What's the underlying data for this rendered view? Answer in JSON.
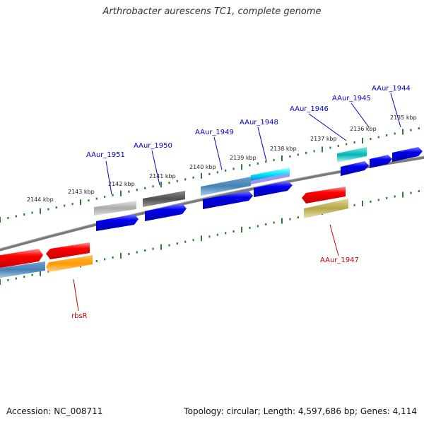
{
  "title": "Arthrobacter aurescens TC1, complete genome",
  "accession": "Accession: NC_008711",
  "topology": "Topology: circular; Length: 4,597,686 bp; Genes: 4,114",
  "colors": {
    "label_top": "#0000cc",
    "label_bottom": "#cc0000",
    "backbone": "#808080",
    "tick": "#2e7d32"
  },
  "kbp_labels": [
    {
      "text": "2144 kbp"
    },
    {
      "text": "2143 kbp"
    },
    {
      "text": "2142 kbp"
    },
    {
      "text": "2141 kbp"
    },
    {
      "text": "2140 kbp"
    },
    {
      "text": "2139 kbp"
    },
    {
      "text": "2138 kbp"
    },
    {
      "text": "2137 kbp"
    },
    {
      "text": "2136 kbp"
    },
    {
      "text": "2135 kbp"
    }
  ],
  "gene_labels": [
    {
      "text": "AAur_1951",
      "color": "#0000cc"
    },
    {
      "text": "AAur_1950",
      "color": "#0000cc"
    },
    {
      "text": "AAur_1949",
      "color": "#0000cc"
    },
    {
      "text": "AAur_1948",
      "color": "#0000cc"
    },
    {
      "text": "AAur_1946",
      "color": "#0000cc"
    },
    {
      "text": "AAur_1945",
      "color": "#0000cc"
    },
    {
      "text": "AAur_1944",
      "color": "#0000cc"
    },
    {
      "text": "AAur_1947",
      "color": "#cc0000"
    },
    {
      "text": "rbsR",
      "color": "#cc0000"
    }
  ]
}
